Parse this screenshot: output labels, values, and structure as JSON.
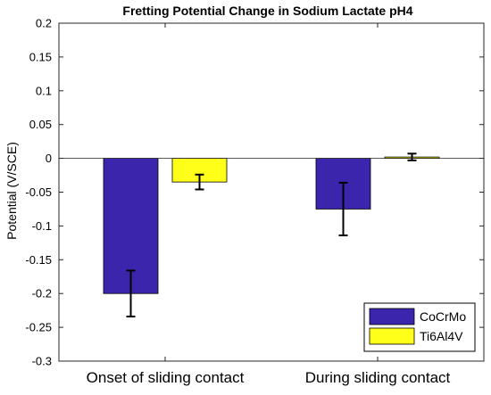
{
  "chart_data": {
    "type": "bar",
    "title": "Fretting Potential Change in Sodium Lactate pH4",
    "xlabel": "",
    "ylabel": "Potential (V/SCE)",
    "ylim": [
      -0.3,
      0.2
    ],
    "yticks": [
      0.2,
      0.15,
      0.1,
      0.05,
      0,
      -0.05,
      -0.1,
      -0.15,
      -0.2,
      -0.25,
      -0.3
    ],
    "yticklabels": [
      "0.2",
      "0.15",
      "0.1",
      "0.05",
      "0",
      "-0.05",
      "-0.1",
      "-0.15",
      "-0.2",
      "-0.25",
      "-0.3"
    ],
    "categories": [
      "Onset of sliding contact",
      "During sliding contact"
    ],
    "series": [
      {
        "name": "CoCrMo",
        "color": "#3b25ad",
        "values": [
          -0.2,
          -0.075
        ],
        "errors": [
          0.034,
          0.039
        ]
      },
      {
        "name": "Ti6Al4V",
        "color": "#ffff1a",
        "values": [
          -0.035,
          0.002
        ],
        "errors": [
          0.011,
          0.005
        ]
      }
    ],
    "legend": {
      "placement": "bottom-right"
    },
    "grid": false
  }
}
